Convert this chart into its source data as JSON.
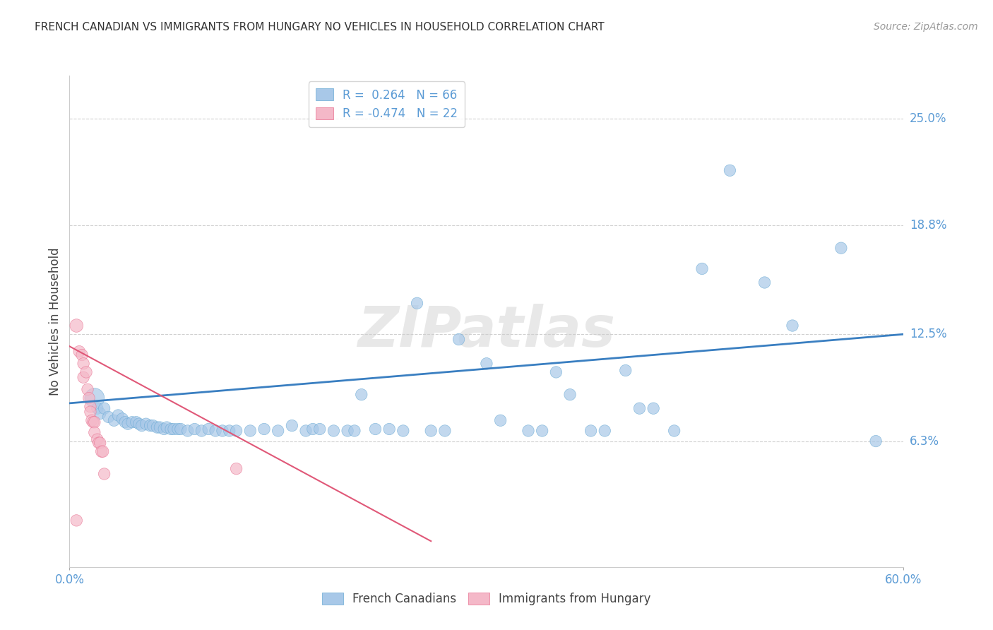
{
  "title": "FRENCH CANADIAN VS IMMIGRANTS FROM HUNGARY NO VEHICLES IN HOUSEHOLD CORRELATION CHART",
  "source": "Source: ZipAtlas.com",
  "ylabel": "No Vehicles in Household",
  "ytick_labels": [
    "25.0%",
    "18.8%",
    "12.5%",
    "6.3%"
  ],
  "ytick_values": [
    0.25,
    0.188,
    0.125,
    0.063
  ],
  "xmin": 0.0,
  "xmax": 0.6,
  "ymin": -0.01,
  "ymax": 0.275,
  "blue_color": "#a8c8e8",
  "blue_edge_color": "#6aaad4",
  "pink_color": "#f4b8c8",
  "pink_edge_color": "#e87090",
  "blue_line_color": "#3a7fc1",
  "pink_line_color": "#e05878",
  "watermark": "ZIPatlas",
  "blue_scatter": [
    [
      0.018,
      0.088
    ],
    [
      0.02,
      0.082
    ],
    [
      0.022,
      0.079
    ],
    [
      0.025,
      0.082
    ],
    [
      0.028,
      0.077
    ],
    [
      0.032,
      0.075
    ],
    [
      0.035,
      0.078
    ],
    [
      0.038,
      0.076
    ],
    [
      0.04,
      0.074
    ],
    [
      0.042,
      0.073
    ],
    [
      0.045,
      0.074
    ],
    [
      0.048,
      0.074
    ],
    [
      0.05,
      0.073
    ],
    [
      0.052,
      0.072
    ],
    [
      0.055,
      0.073
    ],
    [
      0.058,
      0.072
    ],
    [
      0.06,
      0.072
    ],
    [
      0.063,
      0.071
    ],
    [
      0.065,
      0.071
    ],
    [
      0.068,
      0.07
    ],
    [
      0.07,
      0.071
    ],
    [
      0.073,
      0.07
    ],
    [
      0.075,
      0.07
    ],
    [
      0.078,
      0.07
    ],
    [
      0.08,
      0.07
    ],
    [
      0.085,
      0.069
    ],
    [
      0.09,
      0.07
    ],
    [
      0.095,
      0.069
    ],
    [
      0.1,
      0.07
    ],
    [
      0.105,
      0.069
    ],
    [
      0.11,
      0.069
    ],
    [
      0.115,
      0.069
    ],
    [
      0.12,
      0.069
    ],
    [
      0.13,
      0.069
    ],
    [
      0.14,
      0.07
    ],
    [
      0.15,
      0.069
    ],
    [
      0.16,
      0.072
    ],
    [
      0.17,
      0.069
    ],
    [
      0.175,
      0.07
    ],
    [
      0.18,
      0.07
    ],
    [
      0.19,
      0.069
    ],
    [
      0.2,
      0.069
    ],
    [
      0.205,
      0.069
    ],
    [
      0.21,
      0.09
    ],
    [
      0.22,
      0.07
    ],
    [
      0.23,
      0.07
    ],
    [
      0.24,
      0.069
    ],
    [
      0.25,
      0.143
    ],
    [
      0.26,
      0.069
    ],
    [
      0.27,
      0.069
    ],
    [
      0.28,
      0.122
    ],
    [
      0.3,
      0.108
    ],
    [
      0.31,
      0.075
    ],
    [
      0.33,
      0.069
    ],
    [
      0.34,
      0.069
    ],
    [
      0.35,
      0.103
    ],
    [
      0.36,
      0.09
    ],
    [
      0.375,
      0.069
    ],
    [
      0.385,
      0.069
    ],
    [
      0.4,
      0.104
    ],
    [
      0.41,
      0.082
    ],
    [
      0.42,
      0.082
    ],
    [
      0.435,
      0.069
    ],
    [
      0.455,
      0.163
    ],
    [
      0.475,
      0.22
    ],
    [
      0.5,
      0.155
    ],
    [
      0.52,
      0.13
    ],
    [
      0.555,
      0.175
    ],
    [
      0.58,
      0.063
    ]
  ],
  "pink_scatter": [
    [
      0.005,
      0.13
    ],
    [
      0.007,
      0.115
    ],
    [
      0.009,
      0.113
    ],
    [
      0.01,
      0.108
    ],
    [
      0.01,
      0.1
    ],
    [
      0.012,
      0.103
    ],
    [
      0.013,
      0.093
    ],
    [
      0.014,
      0.088
    ],
    [
      0.015,
      0.083
    ],
    [
      0.015,
      0.08
    ],
    [
      0.016,
      0.075
    ],
    [
      0.017,
      0.074
    ],
    [
      0.018,
      0.074
    ],
    [
      0.018,
      0.068
    ],
    [
      0.02,
      0.064
    ],
    [
      0.021,
      0.062
    ],
    [
      0.022,
      0.062
    ],
    [
      0.023,
      0.057
    ],
    [
      0.024,
      0.057
    ],
    [
      0.025,
      0.044
    ],
    [
      0.12,
      0.047
    ],
    [
      0.005,
      0.017
    ]
  ],
  "blue_line_x": [
    0.0,
    0.6
  ],
  "blue_line_y": [
    0.085,
    0.125
  ],
  "pink_line_x": [
    0.0,
    0.26
  ],
  "pink_line_y": [
    0.118,
    0.005
  ],
  "grid_color": "#d0d0d0",
  "background_color": "#ffffff",
  "dot_size": 140,
  "large_blue_dot_idx": 0,
  "large_blue_dot_size": 400
}
